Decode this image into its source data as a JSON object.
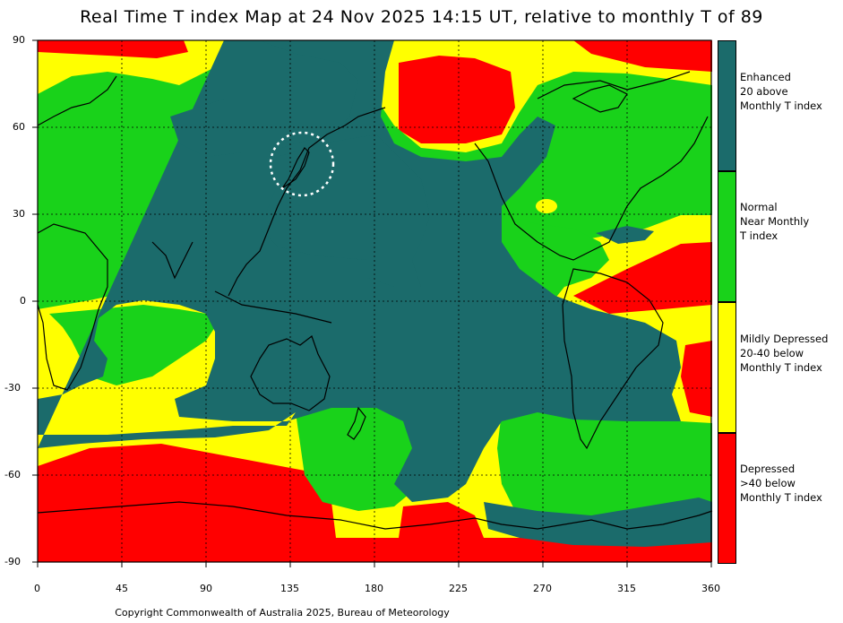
{
  "title": "Real Time T index Map at 24 Nov 2025 14:15 UT, relative to monthly T of 89",
  "colors": {
    "enhanced": "#1b6b6b",
    "normal": "#19d21a",
    "mildly_depressed": "#ffff00",
    "depressed": "#ff0000",
    "coast": "#000000",
    "grid": "#000000",
    "marker": "#ffffff"
  },
  "axes": {
    "y_ticks": [
      "90",
      "60",
      "30",
      "0",
      "-30",
      "-60",
      "-90"
    ],
    "x_ticks": [
      "0",
      "45",
      "90",
      "135",
      "180",
      "225",
      "270",
      "315",
      "360"
    ]
  },
  "legend": [
    {
      "color": "#1b6b6b",
      "lines": [
        "Enhanced",
        "20 above",
        "Monthly T index"
      ]
    },
    {
      "color": "#19d21a",
      "lines": [
        "Normal",
        "Near Monthly",
        "T index"
      ]
    },
    {
      "color": "#ffff00",
      "lines": [
        "Mildly Depressed",
        "20-40 below",
        "Monthly T index"
      ]
    },
    {
      "color": "#ff0000",
      "lines": [
        "Depressed",
        ">40 below",
        "Monthly T index"
      ]
    }
  ],
  "copyright": "Copyright Commonwealth of Australia 2025, Bureau of Meteorology"
}
